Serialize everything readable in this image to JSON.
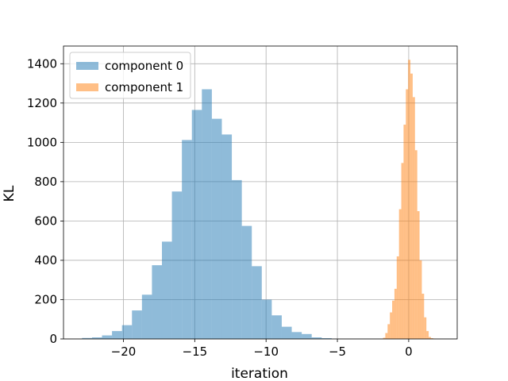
{
  "chart_data": {
    "type": "bar",
    "title": "",
    "xlabel": "iteration",
    "ylabel": "KL",
    "xlim": [
      -24.2,
      3.4
    ],
    "ylim": [
      0,
      1490
    ],
    "xticks": [
      -20,
      -15,
      -10,
      -5,
      0
    ],
    "yticks": [
      0,
      200,
      400,
      600,
      800,
      1000,
      1200,
      1400
    ],
    "grid": true,
    "legend_position": "top-left",
    "series": [
      {
        "name": "component 0",
        "color": "#1f77b4",
        "alpha": 0.5,
        "bin_edges": [
          -22.9,
          -22.2,
          -21.5,
          -20.8,
          -20.1,
          -19.4,
          -18.7,
          -18.0,
          -17.3,
          -16.6,
          -15.9,
          -15.2,
          -14.5,
          -13.8,
          -13.1,
          -12.4,
          -11.7,
          -11.0,
          -10.3,
          -9.6,
          -8.9,
          -8.2,
          -7.5,
          -6.8,
          -6.1,
          -5.4
        ],
        "values": [
          5,
          8,
          18,
          40,
          70,
          145,
          225,
          375,
          495,
          750,
          1012,
          1165,
          1270,
          1120,
          1040,
          808,
          575,
          370,
          200,
          120,
          62,
          35,
          25,
          8,
          4
        ]
      },
      {
        "name": "component 1",
        "color": "#ff7f0e",
        "alpha": 0.5,
        "bin_edges": [
          -1.8,
          -1.64,
          -1.48,
          -1.32,
          -1.16,
          -1.0,
          -0.84,
          -0.68,
          -0.52,
          -0.36,
          -0.2,
          -0.04,
          0.12,
          0.28,
          0.44,
          0.6,
          0.76,
          0.92,
          1.08,
          1.24,
          1.4,
          1.56,
          1.72,
          1.88,
          2.04,
          2.2
        ],
        "values": [
          6,
          30,
          75,
          135,
          195,
          255,
          420,
          660,
          895,
          1090,
          1270,
          1420,
          1350,
          1230,
          960,
          650,
          400,
          230,
          110,
          40,
          10,
          4,
          2,
          0,
          0
        ]
      }
    ]
  }
}
